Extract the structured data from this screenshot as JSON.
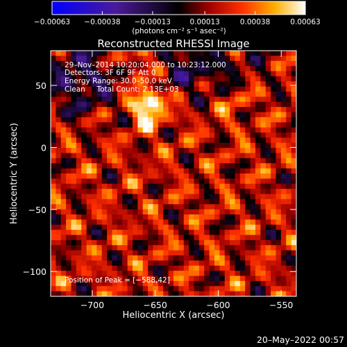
{
  "chart_data": {
    "type": "heatmap",
    "title": "Reconstructed RHESSI Image",
    "xlabel": "Heliocentric X (arcsec)",
    "ylabel": "Heliocentric Y (arcsec)",
    "xlim": [
      -733,
      -538
    ],
    "ylim": [
      -120,
      78
    ],
    "xticks": [
      {
        "value": -700,
        "label": "−700"
      },
      {
        "value": -650,
        "label": "−650"
      },
      {
        "value": -600,
        "label": "−600"
      },
      {
        "value": -550,
        "label": "−550"
      }
    ],
    "yticks": [
      {
        "value": 50,
        "label": "50"
      },
      {
        "value": 0,
        "label": "0"
      },
      {
        "value": -50,
        "label": "−50"
      },
      {
        "value": -100,
        "label": "−100"
      }
    ],
    "colorbar": {
      "range": [
        -0.00063,
        0.00063
      ],
      "unit_label": "(photons cm⁻² s⁻¹ asec⁻²)",
      "ticks": [
        {
          "value": -0.00063,
          "label": "−0.00063"
        },
        {
          "value": -0.00038,
          "label": "−0.00038"
        },
        {
          "value": -0.00013,
          "label": "−0.00013"
        },
        {
          "value": 0.00013,
          "label": "0.00013"
        },
        {
          "value": 0.00038,
          "label": "0.00038"
        },
        {
          "value": 0.00063,
          "label": "0.00063"
        }
      ]
    },
    "annotations": [
      "29–Nov–2014 10:20:04.000 to 10:23:12.000",
      "Detectors: 3F 6F 9F  Att 0",
      "Energy Range: 30.0–50.0 keV",
      "Clean     Total Count: 2.13E+03"
    ],
    "peak_label": "Position of Peak = [−588,42]",
    "peak": {
      "x": -588,
      "y": 42
    }
  },
  "footer": {
    "timestamp": "20–May–2022 00:57"
  }
}
